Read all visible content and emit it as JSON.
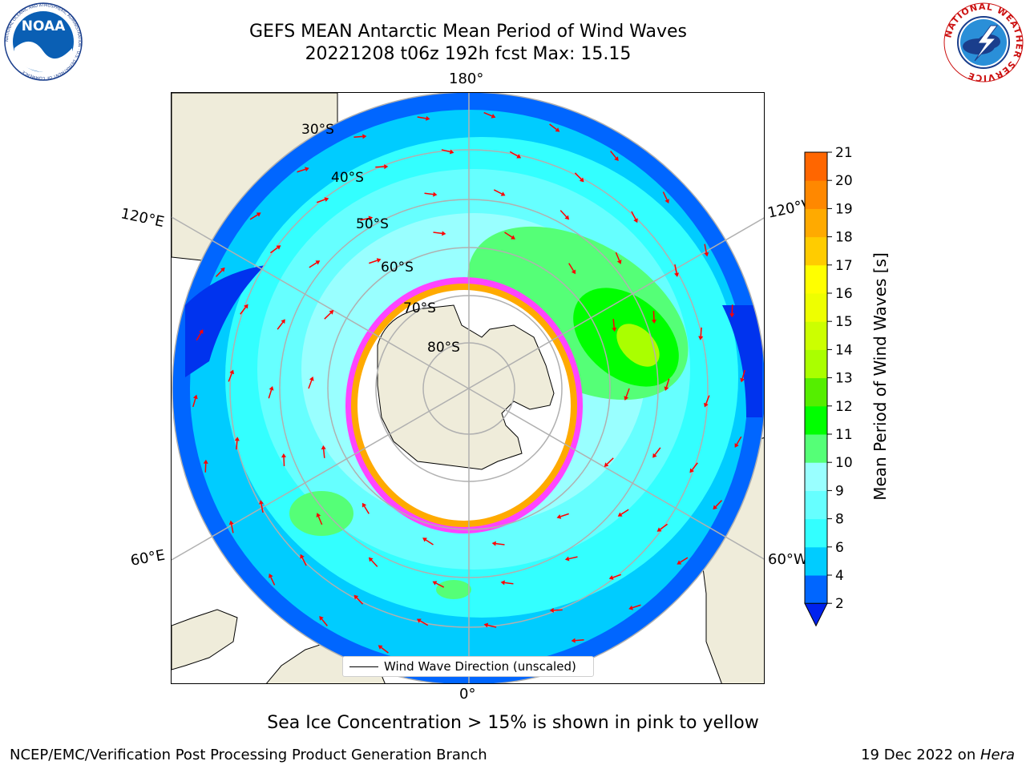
{
  "title": {
    "line1": "GEFS MEAN Antarctic Mean Period of Wind Waves",
    "line2": "20221208 t06z 192h fcst   Max: 15.15"
  },
  "logos": {
    "left": "noaa-logo",
    "left_text": "NOAA",
    "left_ring_text": "NATIONAL OCEANIC AND ATMOSPHERIC ADMINISTRATION · U.S. DEPARTMENT OF COMMERCE",
    "right": "nws-logo",
    "right_ring_text": "NATIONAL WEATHER SERVICE"
  },
  "map": {
    "projection": "south-polar-stereographic",
    "lon_labels": {
      "top": "180°",
      "bottom": "0°",
      "upper_left": "120°E",
      "upper_right": "120°W",
      "lower_left": "60°E",
      "lower_right": "60°W"
    },
    "lat_labels": [
      "30°S",
      "40°S",
      "50°S",
      "60°S",
      "70°S",
      "80°S"
    ],
    "colors": {
      "land": "#efecda",
      "ice": "#ffffff",
      "arrow": "#ff0000",
      "grid": "#b0b0b0",
      "coast": "#000000"
    },
    "legend": "Wind Wave Direction (unscaled)"
  },
  "colorbar": {
    "label": "Mean Period of Wind Waves [s]",
    "ticks": [
      "2",
      "4",
      "6",
      "8",
      "9",
      "10",
      "11",
      "12",
      "13",
      "14",
      "15",
      "16",
      "17",
      "18",
      "19",
      "20",
      "21"
    ],
    "colors": [
      "#0066ff",
      "#00ccff",
      "#33ffff",
      "#66ffff",
      "#99ffff",
      "#55ff77",
      "#00ff00",
      "#55ee00",
      "#aaff00",
      "#ccff00",
      "#eeff00",
      "#ffff00",
      "#ffcc00",
      "#ffaa00",
      "#ff8800",
      "#ff6600",
      "#ff3300",
      "#ff0000"
    ],
    "under_color": "#0022ee"
  },
  "chart_data": {
    "type": "heatmap",
    "title": "GEFS MEAN Antarctic Mean Period of Wind Waves",
    "subtitle": "20221208 t06z 192h fcst   Max: 15.15",
    "variable": "Mean Period of Wind Waves [s]",
    "max": 15.15,
    "levels": [
      2,
      4,
      6,
      8,
      9,
      10,
      11,
      12,
      13,
      14,
      15,
      16,
      17,
      18,
      19,
      20,
      21
    ],
    "overlay": "Wind Wave Direction (unscaled)"
  },
  "notes": {
    "ice": "Sea Ice Concentration > 15% is shown in pink to yellow",
    "credit": "NCEP/EMC/Verification Post Processing Product Generation Branch",
    "date": "19 Dec 2022 on ",
    "machine": "Hera"
  }
}
